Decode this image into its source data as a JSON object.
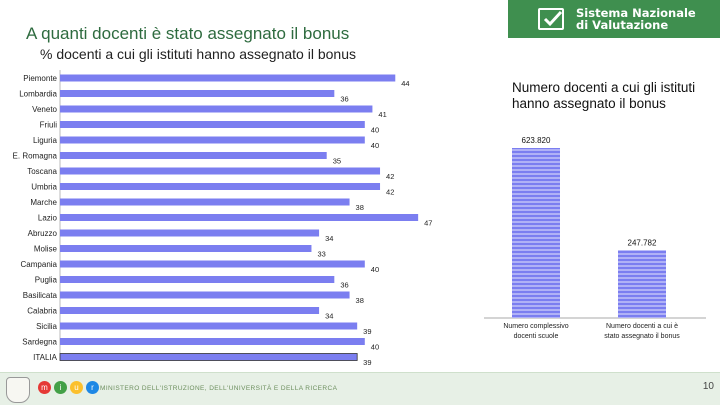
{
  "slide": {
    "title": "A quanti docenti è stato assegnato il bonus",
    "subtitle": "% docenti a cui gli istituti hanno assegnato il bonus",
    "side_title": "Numero docenti a cui gli istituti hanno assegnato il bonus"
  },
  "brand": {
    "line1": "Sistema Nazionale",
    "line2": "di Valutazione",
    "color": "#3f8f4f"
  },
  "footer": {
    "ministry": "MINISTERO DELL'ISTRUZIONE, DELL'UNIVERSITÀ E DELLA RICERCA",
    "logo_letters": [
      "m",
      "i",
      "u",
      "r"
    ],
    "logo_colors": [
      "#e53935",
      "#43a047",
      "#fbc02d",
      "#1e88e5"
    ],
    "page_number": "10"
  },
  "chart_data": [
    {
      "type": "bar",
      "orientation": "horizontal",
      "title": "% docenti a cui gli istituti hanno assegnato il bonus",
      "categories": [
        "Piemonte",
        "Lombardia",
        "Veneto",
        "Friuli",
        "Liguria",
        "E. Romagna",
        "Toscana",
        "Umbria",
        "Marche",
        "Lazio",
        "Abruzzo",
        "Molise",
        "Campania",
        "Puglia",
        "Basilicata",
        "Calabria",
        "Sicilia",
        "Sardegna",
        "ITALIA"
      ],
      "values": [
        44,
        36,
        41,
        40,
        40,
        35,
        42,
        42,
        38,
        47,
        34,
        33,
        40,
        36,
        38,
        34,
        39,
        40,
        39
      ],
      "xlim": [
        0,
        50
      ],
      "bar_color": "#7b7ef0",
      "highlight_category": "ITALIA",
      "legend": "none"
    },
    {
      "type": "bar",
      "orientation": "vertical",
      "categories": [
        "Numero complessivo docenti scuole",
        "Numero docenti a cui è stato assegnato il bonus"
      ],
      "values": [
        623820,
        247782
      ],
      "value_labels": [
        "623.820",
        "247.782"
      ],
      "ylim": [
        0,
        623820
      ],
      "bar_colors": [
        "#7b7ef0",
        "#7b7ef0"
      ],
      "legend": "none"
    }
  ]
}
